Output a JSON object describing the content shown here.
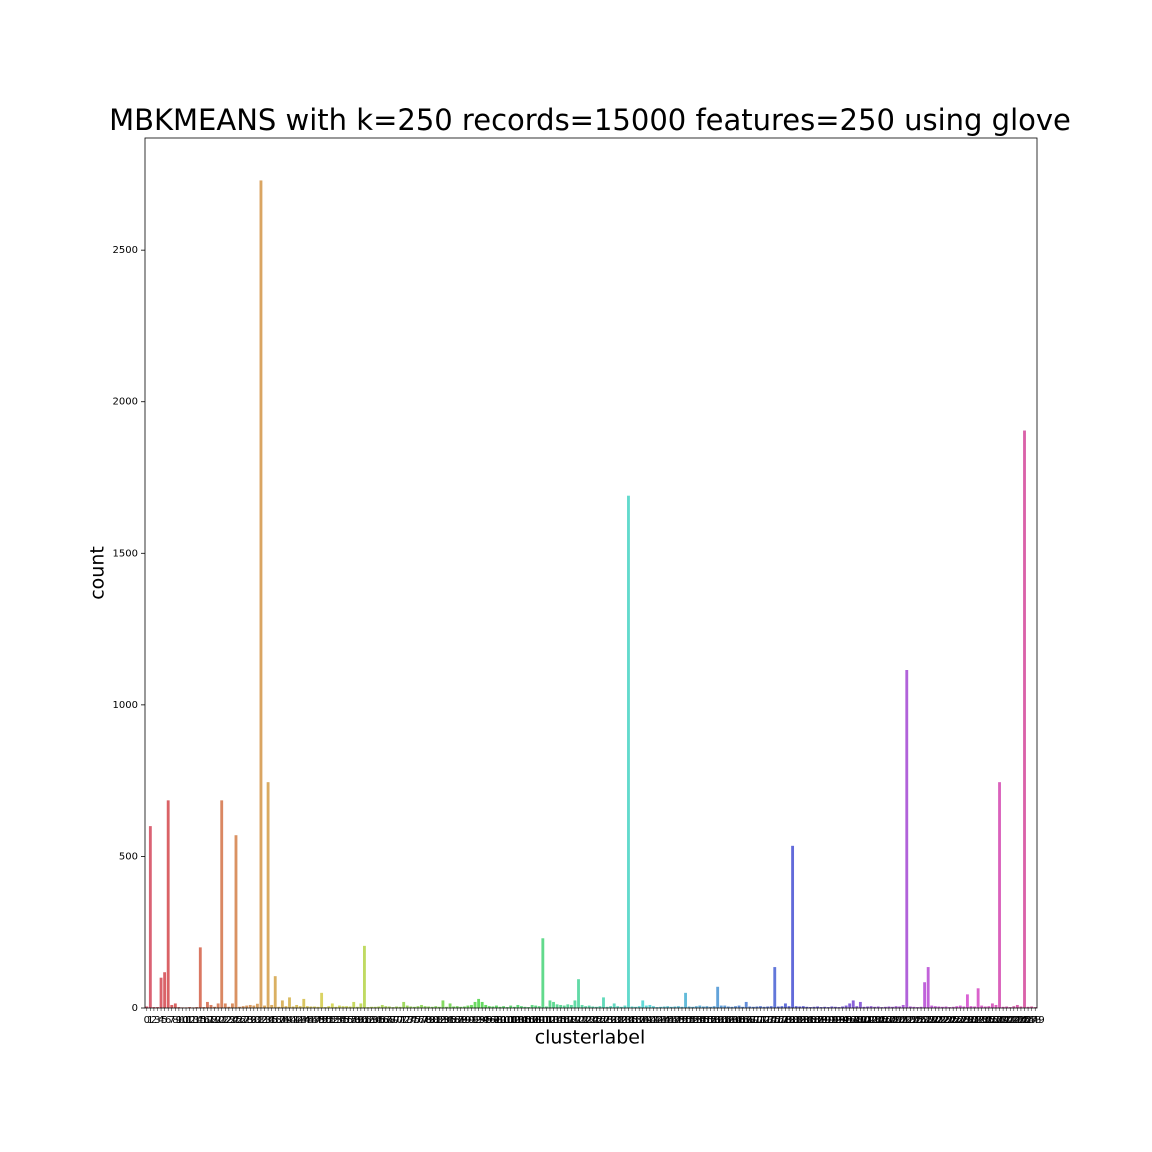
{
  "chart_data": {
    "type": "bar",
    "title": "MBKMEANS with k=250 records=15000 features=250 using glove",
    "x_label": "clusterlabel",
    "y_label": "count",
    "palette": "husl",
    "categories": [
      0,
      1,
      2,
      3,
      4,
      5,
      6,
      7,
      8,
      9,
      10,
      11,
      12,
      13,
      14,
      15,
      16,
      17,
      18,
      19,
      20,
      21,
      22,
      23,
      24,
      25,
      26,
      27,
      28,
      29,
      30,
      31,
      32,
      33,
      34,
      35,
      36,
      37,
      38,
      39,
      40,
      41,
      42,
      43,
      44,
      45,
      46,
      47,
      48,
      49,
      50,
      51,
      52,
      53,
      54,
      55,
      56,
      57,
      58,
      59,
      60,
      61,
      62,
      63,
      64,
      65,
      66,
      67,
      68,
      69,
      70,
      71,
      72,
      73,
      74,
      75,
      76,
      77,
      78,
      79,
      80,
      81,
      82,
      83,
      84,
      85,
      86,
      87,
      88,
      89,
      90,
      91,
      92,
      93,
      94,
      95,
      96,
      97,
      98,
      99,
      100,
      101,
      102,
      103,
      104,
      105,
      106,
      107,
      108,
      109,
      110,
      111,
      112,
      113,
      114,
      115,
      116,
      117,
      118,
      119,
      120,
      121,
      122,
      123,
      124,
      125,
      126,
      127,
      128,
      129,
      130,
      131,
      132,
      133,
      134,
      135,
      136,
      137,
      138,
      139,
      140,
      141,
      142,
      143,
      144,
      145,
      146,
      147,
      148,
      149,
      150,
      151,
      152,
      153,
      154,
      155,
      156,
      157,
      158,
      159,
      160,
      161,
      162,
      163,
      164,
      165,
      166,
      167,
      168,
      169,
      170,
      171,
      172,
      173,
      174,
      175,
      176,
      177,
      178,
      179,
      180,
      181,
      182,
      183,
      184,
      185,
      186,
      187,
      188,
      189,
      190,
      191,
      192,
      193,
      194,
      195,
      196,
      197,
      198,
      199,
      200,
      201,
      202,
      203,
      204,
      205,
      206,
      207,
      208,
      209,
      210,
      211,
      212,
      213,
      214,
      215,
      216,
      217,
      218,
      219,
      220,
      221,
      222,
      223,
      224,
      225,
      226,
      227,
      228,
      229,
      230,
      231,
      232,
      233,
      234,
      235,
      236,
      237,
      238,
      239,
      240,
      241,
      242,
      243,
      244,
      245,
      246,
      247,
      248,
      249
    ],
    "values": [
      5,
      600,
      3,
      3,
      100,
      118,
      685,
      10,
      15,
      3,
      2,
      2,
      3,
      2,
      3,
      200,
      3,
      20,
      10,
      4,
      15,
      685,
      15,
      4,
      15,
      570,
      4,
      6,
      8,
      10,
      8,
      14,
      2730,
      8,
      745,
      10,
      105,
      4,
      25,
      6,
      35,
      5,
      10,
      6,
      30,
      6,
      5,
      5,
      4,
      50,
      3,
      6,
      15,
      4,
      8,
      6,
      6,
      5,
      20,
      4,
      15,
      205,
      3,
      4,
      4,
      5,
      10,
      6,
      5,
      3,
      5,
      4,
      20,
      8,
      5,
      4,
      6,
      10,
      6,
      5,
      4,
      6,
      4,
      25,
      4,
      15,
      5,
      6,
      4,
      5,
      8,
      10,
      20,
      30,
      20,
      10,
      6,
      5,
      8,
      4,
      6,
      3,
      8,
      4,
      10,
      6,
      4,
      3,
      10,
      8,
      6,
      230,
      5,
      25,
      20,
      12,
      10,
      8,
      12,
      10,
      25,
      95,
      10,
      6,
      8,
      5,
      4,
      6,
      35,
      4,
      6,
      15,
      6,
      4,
      8,
      1690,
      5,
      4,
      6,
      25,
      8,
      10,
      6,
      3,
      4,
      5,
      6,
      4,
      5,
      6,
      4,
      50,
      5,
      4,
      6,
      8,
      5,
      6,
      4,
      6,
      70,
      8,
      8,
      5,
      4,
      6,
      8,
      4,
      20,
      5,
      4,
      5,
      6,
      4,
      5,
      6,
      135,
      5,
      6,
      15,
      6,
      535,
      6,
      5,
      6,
      4,
      3,
      4,
      5,
      3,
      4,
      3,
      5,
      4,
      3,
      5,
      8,
      15,
      25,
      6,
      20,
      4,
      5,
      6,
      4,
      5,
      3,
      4,
      5,
      4,
      6,
      5,
      10,
      1115,
      5,
      4,
      3,
      4,
      85,
      135,
      8,
      6,
      5,
      4,
      5,
      3,
      4,
      6,
      8,
      5,
      45,
      6,
      5,
      65,
      8,
      5,
      6,
      15,
      10,
      745,
      4,
      5,
      3,
      6,
      10,
      5,
      1905,
      4,
      5,
      3
    ],
    "ylim": [
      0,
      2870
    ],
    "yticks": [
      0,
      500,
      1000,
      1500,
      2000,
      2500
    ]
  }
}
